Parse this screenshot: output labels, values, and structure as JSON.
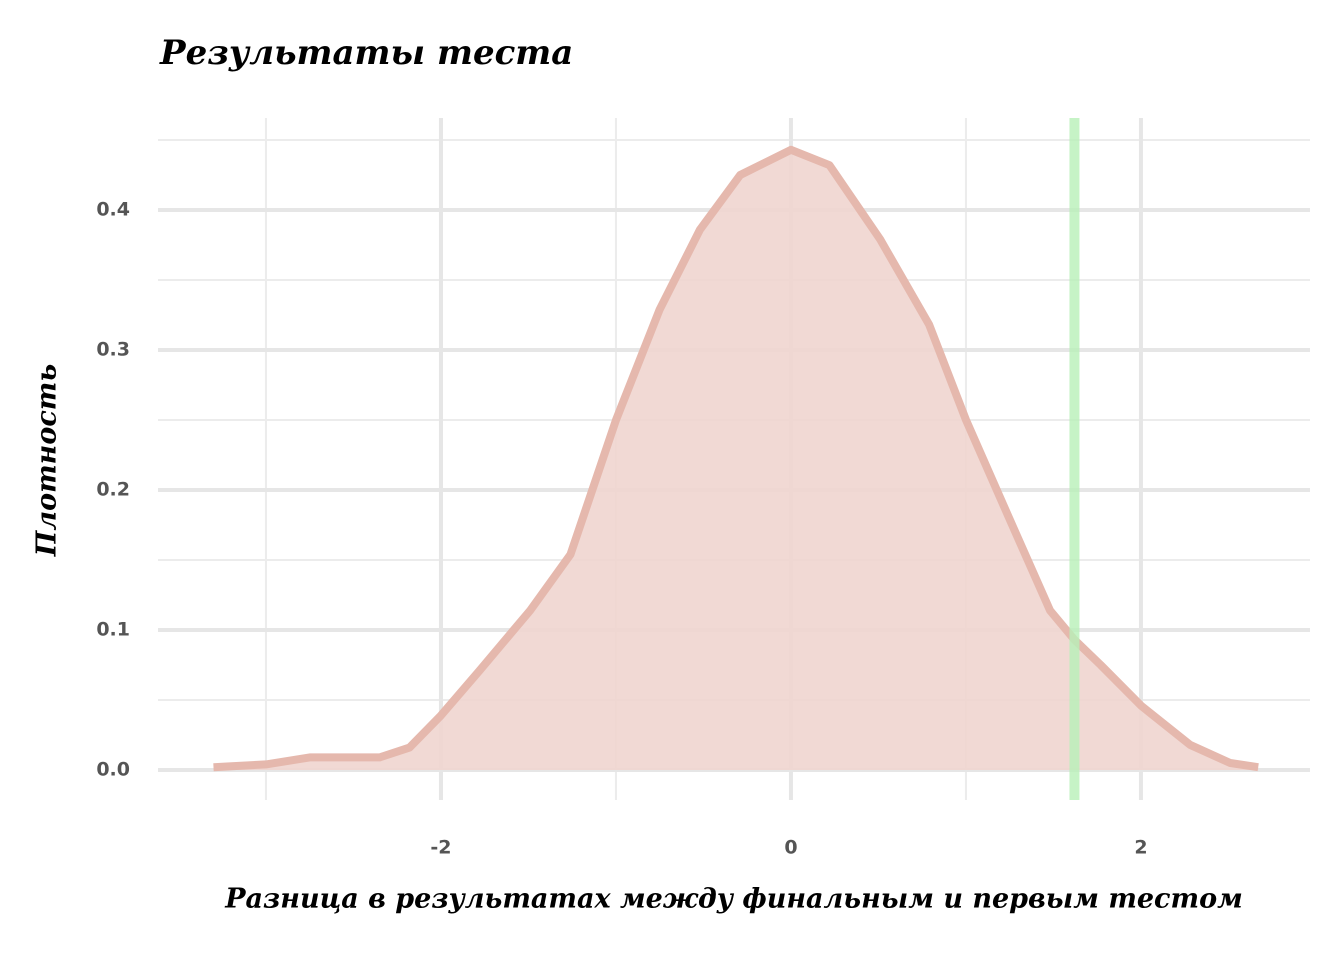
{
  "chart_data": {
    "type": "density",
    "title": "Результаты теста",
    "xlabel": "Разница в результатах между финальным и первым тестом",
    "ylabel": "Плотность",
    "x": [
      -3.3,
      -3.0,
      -2.75,
      -2.35,
      -2.18,
      -2.0,
      -1.78,
      -1.49,
      -1.26,
      -1.0,
      -0.75,
      -0.52,
      -0.29,
      0.0,
      0.22,
      0.51,
      0.79,
      1.0,
      1.25,
      1.48,
      1.62,
      1.77,
      2.0,
      2.28,
      2.51,
      2.67
    ],
    "values": [
      0.002,
      0.004,
      0.009,
      0.009,
      0.016,
      0.039,
      0.071,
      0.114,
      0.154,
      0.25,
      0.329,
      0.386,
      0.425,
      0.443,
      0.432,
      0.379,
      0.318,
      0.25,
      0.179,
      0.114,
      0.093,
      0.075,
      0.046,
      0.018,
      0.005,
      0.002
    ],
    "color": "#e5b8ad",
    "fill": "#efd5cf",
    "vline": {
      "value": 1.62,
      "color": "#b8f0b8"
    },
    "xlim": [
      -3.617,
      2.966
    ],
    "ylim": [
      -0.0214,
      0.4657
    ],
    "xticks": [
      -2,
      0,
      2
    ],
    "yticks": [
      {
        "value": 0,
        "label": "0.0"
      },
      0.1,
      0.2,
      0.3,
      0.4
    ],
    "xminor": [
      -3,
      -1,
      1
    ],
    "yminor": [
      0.05,
      0.15,
      0.25,
      0.35,
      0.45
    ],
    "grid": true
  }
}
